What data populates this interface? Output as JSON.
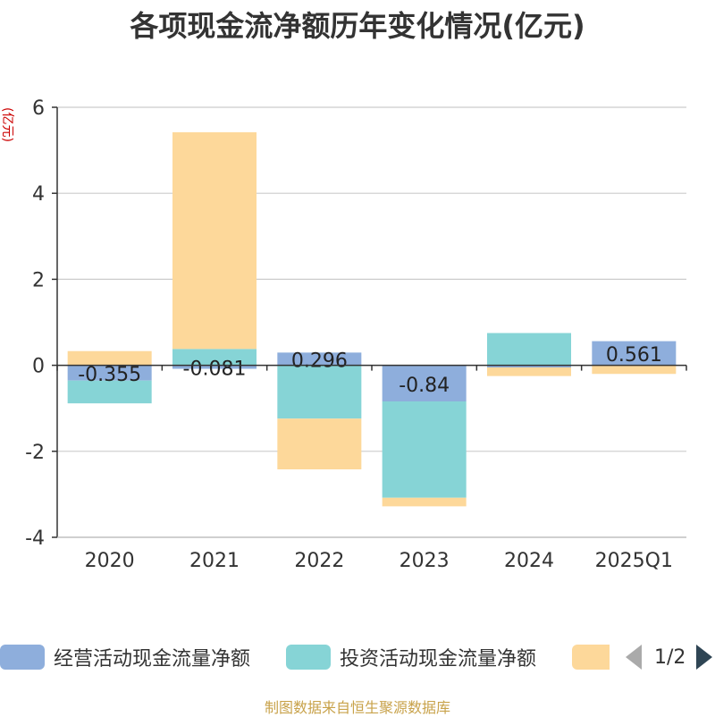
{
  "chart_data": {
    "type": "bar",
    "stacked": true,
    "title": "各项现金流净额历年变化情况(亿元)",
    "ylabel": "(亿元)",
    "xlabel": "",
    "categories": [
      "2020",
      "2021",
      "2022",
      "2023",
      "2024",
      "2025Q1"
    ],
    "ylim": [
      -4,
      6
    ],
    "yticks": [
      6,
      4,
      2,
      0,
      -2,
      -4
    ],
    "grid": true,
    "series": [
      {
        "name": "经营活动现金流量净额",
        "color": "#8eaedc",
        "values": [
          -0.355,
          -0.081,
          0.296,
          -0.84,
          -0.05,
          0.561
        ],
        "labels": [
          "-0.355",
          "-0.081",
          "0.296",
          "-0.84",
          "",
          "0.561"
        ]
      },
      {
        "name": "投资活动现金流量净额",
        "color": "#86d4d6",
        "values": [
          -0.53,
          0.38,
          -1.24,
          -2.24,
          0.75,
          0.0
        ]
      },
      {
        "name": "",
        "color": "#fdd89a",
        "values": [
          0.33,
          5.04,
          -1.18,
          -0.2,
          -0.2,
          -0.2
        ]
      }
    ]
  },
  "legend": {
    "items": [
      {
        "label": "经营活动现金流量净额",
        "color": "#8eaedc"
      },
      {
        "label": "投资活动现金流量净额",
        "color": "#86d4d6"
      },
      {
        "label": "",
        "color": "#fdd89a"
      }
    ],
    "page_text": "1/2"
  },
  "source_note": "制图数据来自恒生聚源数据库"
}
